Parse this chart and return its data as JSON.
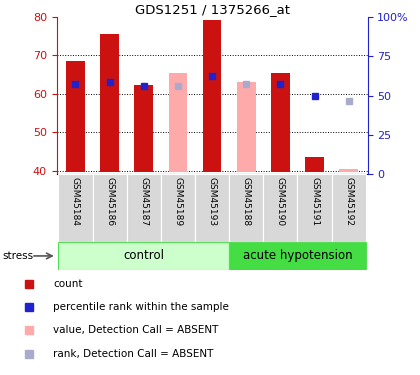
{
  "title": "GDS1251 / 1375266_at",
  "samples": [
    "GSM45184",
    "GSM45186",
    "GSM45187",
    "GSM45189",
    "GSM45193",
    "GSM45188",
    "GSM45190",
    "GSM45191",
    "GSM45192"
  ],
  "n_control": 5,
  "n_hypotension": 4,
  "ylim_left": [
    39,
    80
  ],
  "ylim_right": [
    0,
    100
  ],
  "yticks_left": [
    40,
    50,
    60,
    70,
    80
  ],
  "yticks_right": [
    0,
    25,
    50,
    75,
    100
  ],
  "red_bar_values": [
    68.5,
    75.5,
    62.2,
    null,
    79.2,
    null,
    65.5,
    43.5,
    null
  ],
  "pink_bar_values": [
    null,
    null,
    null,
    65.5,
    null,
    63.0,
    null,
    null,
    40.5
  ],
  "blue_square_values": [
    62.5,
    63.0,
    62.0,
    null,
    64.5,
    null,
    62.5,
    59.5,
    null
  ],
  "light_blue_square_values": [
    null,
    null,
    null,
    62.0,
    null,
    62.5,
    null,
    null,
    58.0
  ],
  "bar_width": 0.55,
  "base_value": 39.5,
  "red_color": "#cc1111",
  "pink_color": "#ffaaaa",
  "blue_color": "#2222cc",
  "light_blue_color": "#aaaacc",
  "ctrl_light": "#ccffcc",
  "ctrl_dark": "#55dd55",
  "hyp_color": "#44dd44",
  "left_axis_color": "#cc1111",
  "right_axis_color": "#2222cc"
}
